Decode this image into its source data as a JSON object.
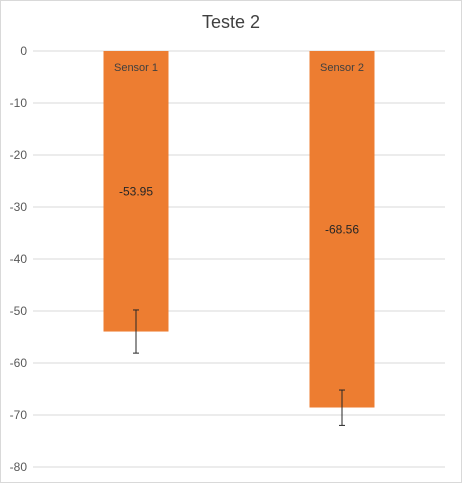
{
  "chart_data": {
    "type": "bar",
    "title": "Teste 2",
    "categories": [
      "Sensor 1",
      "Sensor 2"
    ],
    "values": [
      -53.95,
      -68.56
    ],
    "data_labels": [
      "-53.95",
      "-68.56"
    ],
    "error_bars": [
      {
        "low": -58.1,
        "high": -49.8
      },
      {
        "low": -72.0,
        "high": -65.2
      }
    ],
    "ylim": [
      -80,
      0
    ],
    "yticks": [
      0,
      -10,
      -20,
      -30,
      -40,
      -50,
      -60,
      -70,
      -80
    ],
    "ytick_labels": [
      "0",
      "-10",
      "-20",
      "-30",
      "-40",
      "-50",
      "-60",
      "-70",
      "-80"
    ],
    "grid": true,
    "legend": "none",
    "bar_color": "#ED7D31",
    "xlabel": "",
    "ylabel": ""
  }
}
